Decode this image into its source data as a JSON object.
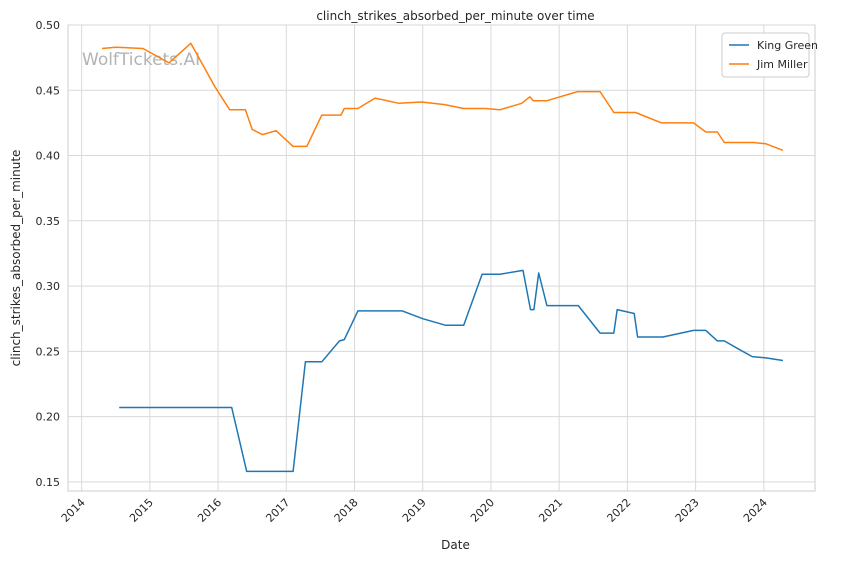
{
  "watermark": "WolfTickets.AI",
  "chart_data": {
    "type": "line",
    "title": "clinch_strikes_absorbed_per_minute over time",
    "xlabel": "Date",
    "ylabel": "clinch_strikes_absorbed_per_minute",
    "xlim": [
      2013.8,
      2024.75
    ],
    "ylim": [
      0.143,
      0.5
    ],
    "x_ticks": [
      2014,
      2015,
      2016,
      2017,
      2018,
      2019,
      2020,
      2021,
      2022,
      2023,
      2024
    ],
    "x_tick_labels": [
      "2014",
      "2015",
      "2016",
      "2017",
      "2018",
      "2019",
      "2020",
      "2021",
      "2022",
      "2023",
      "2024"
    ],
    "y_ticks": [
      0.15,
      0.2,
      0.25,
      0.3,
      0.35,
      0.4,
      0.45,
      0.5
    ],
    "y_tick_labels": [
      "0.15",
      "0.20",
      "0.25",
      "0.30",
      "0.35",
      "0.40",
      "0.45",
      "0.50"
    ],
    "grid": true,
    "legend_position": "top-right",
    "series": [
      {
        "name": "King Green",
        "color": "#1f77b4",
        "x": [
          2014.55,
          2016.2,
          2016.42,
          2017.1,
          2017.28,
          2017.52,
          2017.78,
          2017.85,
          2018.05,
          2018.7,
          2019.0,
          2019.33,
          2019.6,
          2019.87,
          2020.13,
          2020.47,
          2020.58,
          2020.63,
          2020.7,
          2020.82,
          2021.28,
          2021.6,
          2021.8,
          2021.85,
          2022.1,
          2022.15,
          2022.52,
          2022.97,
          2023.15,
          2023.32,
          2023.42,
          2023.62,
          2023.83,
          2024.03,
          2024.28
        ],
        "values": [
          0.207,
          0.207,
          0.158,
          0.158,
          0.242,
          0.242,
          0.258,
          0.259,
          0.281,
          0.281,
          0.275,
          0.27,
          0.27,
          0.309,
          0.309,
          0.312,
          0.282,
          0.282,
          0.31,
          0.285,
          0.285,
          0.264,
          0.264,
          0.282,
          0.279,
          0.261,
          0.261,
          0.266,
          0.266,
          0.258,
          0.258,
          0.252,
          0.246,
          0.245,
          0.243
        ]
      },
      {
        "name": "Jim Miller",
        "color": "#ff7f0e",
        "x": [
          2014.3,
          2014.5,
          2014.9,
          2015.28,
          2015.6,
          2015.95,
          2016.17,
          2016.4,
          2016.5,
          2016.65,
          2016.85,
          2017.1,
          2017.3,
          2017.52,
          2017.8,
          2017.85,
          2018.05,
          2018.3,
          2018.65,
          2018.98,
          2019.32,
          2019.6,
          2019.92,
          2020.13,
          2020.45,
          2020.57,
          2020.62,
          2020.82,
          2021.27,
          2021.6,
          2021.8,
          2022.12,
          2022.5,
          2022.97,
          2023.15,
          2023.32,
          2023.42,
          2023.85,
          2024.03,
          2024.28
        ],
        "values": [
          0.482,
          0.483,
          0.482,
          0.471,
          0.486,
          0.453,
          0.435,
          0.435,
          0.42,
          0.416,
          0.419,
          0.407,
          0.407,
          0.431,
          0.431,
          0.436,
          0.436,
          0.444,
          0.44,
          0.441,
          0.439,
          0.436,
          0.436,
          0.435,
          0.44,
          0.445,
          0.442,
          0.442,
          0.449,
          0.449,
          0.433,
          0.433,
          0.425,
          0.425,
          0.418,
          0.418,
          0.41,
          0.41,
          0.409,
          0.404
        ]
      }
    ]
  }
}
